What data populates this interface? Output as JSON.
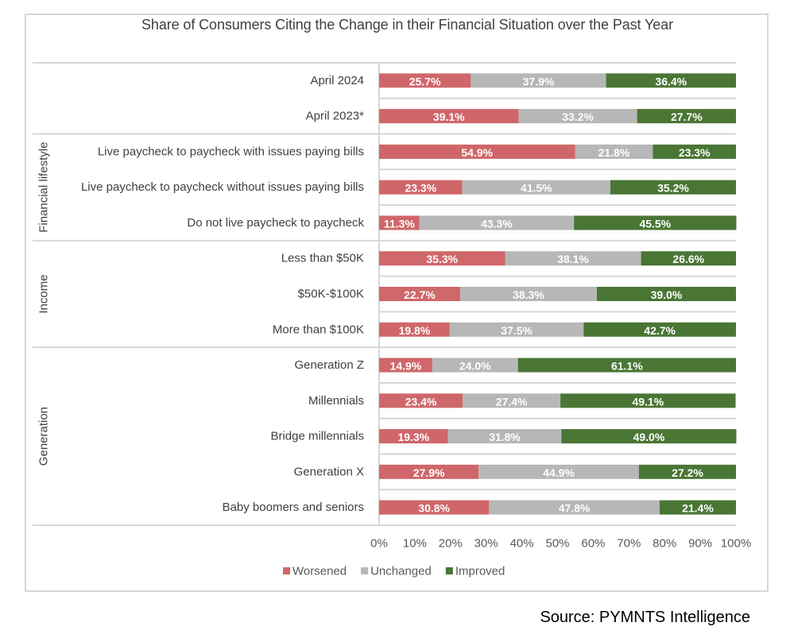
{
  "chart_data": {
    "type": "bar",
    "orientation": "horizontal",
    "stacked": "percent",
    "title": "Share of Consumers Citing the Change in their Financial Situation over the Past Year",
    "xlabel": "",
    "ylabel": "",
    "xlim": [
      0,
      100
    ],
    "x_ticks": [
      "0%",
      "10%",
      "20%",
      "30%",
      "40%",
      "50%",
      "60%",
      "70%",
      "80%",
      "90%",
      "100%"
    ],
    "legend_position": "bottom-left",
    "legend": [
      "Worsened",
      "Unchanged",
      "Improved"
    ],
    "colors": {
      "Worsened": "#cf676a",
      "Unchanged": "#b7b7b7",
      "Improved": "#4a7635"
    },
    "groups": [
      {
        "name": "",
        "categories": [
          "April 2024",
          "April 2023*"
        ]
      },
      {
        "name": "Financial lifestyle",
        "categories": [
          "Live paycheck to paycheck with issues paying bills",
          "Live paycheck to paycheck without issues paying bills",
          "Do not live paycheck to paycheck"
        ]
      },
      {
        "name": "Income",
        "categories": [
          "Less than $50K",
          "$50K-$100K",
          "More than $100K"
        ]
      },
      {
        "name": "Generation",
        "categories": [
          "Generation Z",
          "Millennials",
          "Bridge millennials",
          "Generation X",
          "Baby boomers and seniors"
        ]
      }
    ],
    "categories": [
      "April 2024",
      "April 2023*",
      "Live paycheck to paycheck with issues paying bills",
      "Live paycheck to paycheck without issues paying bills",
      "Do not live paycheck to paycheck",
      "Less than $50K",
      "$50K-$100K",
      "More than $100K",
      "Generation Z",
      "Millennials",
      "Bridge millennials",
      "Generation X",
      "Baby boomers and seniors"
    ],
    "series": [
      {
        "name": "Worsened",
        "values": [
          25.7,
          39.1,
          54.9,
          23.3,
          11.3,
          35.3,
          22.7,
          19.8,
          14.9,
          23.4,
          19.3,
          27.9,
          30.8
        ]
      },
      {
        "name": "Unchanged",
        "values": [
          37.9,
          33.2,
          21.8,
          41.5,
          43.3,
          38.1,
          38.3,
          37.5,
          24.0,
          27.4,
          31.8,
          44.9,
          47.8
        ]
      },
      {
        "name": "Improved",
        "values": [
          36.4,
          27.7,
          23.3,
          35.2,
          45.5,
          26.6,
          39.0,
          42.7,
          61.1,
          49.1,
          49.0,
          27.2,
          21.4
        ]
      }
    ],
    "data_labels": [
      [
        "25.7%",
        "37.9%",
        "36.4%"
      ],
      [
        "39.1%",
        "33.2%",
        "27.7%"
      ],
      [
        "54.9%",
        "21.8%",
        "23.3%"
      ],
      [
        "23.3%",
        "41.5%",
        "35.2%"
      ],
      [
        "11.3%",
        "43.3%",
        "45.5%"
      ],
      [
        "35.3%",
        "38.1%",
        "26.6%"
      ],
      [
        "22.7%",
        "38.3%",
        "39.0%"
      ],
      [
        "19.8%",
        "37.5%",
        "42.7%"
      ],
      [
        "14.9%",
        "24.0%",
        "61.1%"
      ],
      [
        "23.4%",
        "27.4%",
        "49.1%"
      ],
      [
        "19.3%",
        "31.8%",
        "49.0%"
      ],
      [
        "27.9%",
        "44.9%",
        "27.2%"
      ],
      [
        "30.8%",
        "47.8%",
        "21.4%"
      ]
    ]
  },
  "source": "Source: PYMNTS Intelligence"
}
